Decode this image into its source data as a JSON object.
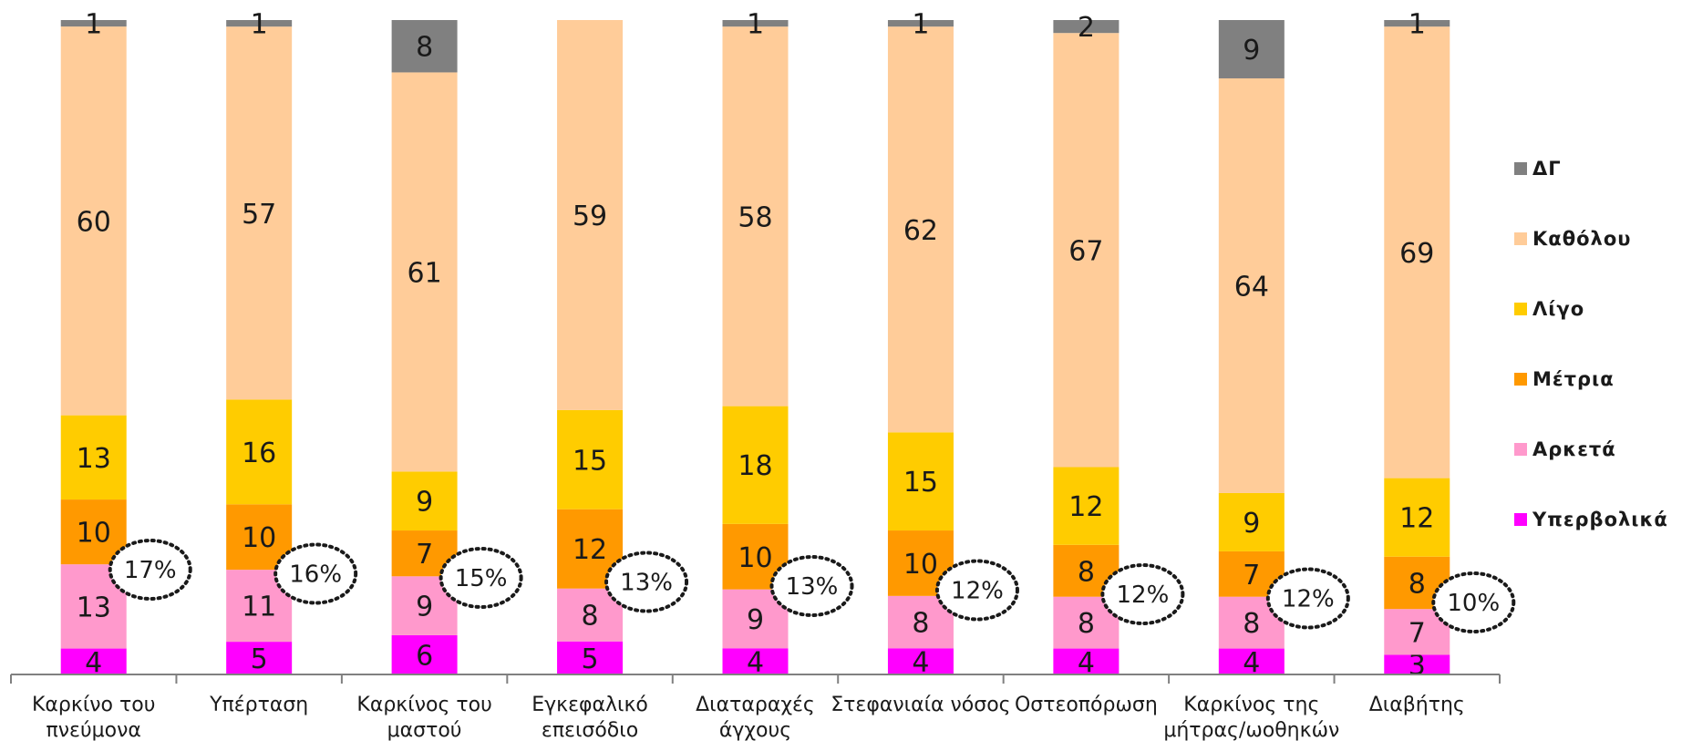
{
  "chart_data": {
    "type": "bar",
    "stacked": true,
    "percent_stacked": true,
    "categories": [
      [
        "Καρκίνο του",
        "πνεύμονα"
      ],
      [
        "Υπέρταση"
      ],
      [
        "Καρκίνος του",
        "μαστού"
      ],
      [
        "Εγκεφαλικό",
        "επεισόδιο"
      ],
      [
        "Διαταραχές",
        "άγχους"
      ],
      [
        "Στεφανιαία νόσος"
      ],
      [
        "Οστεοπόρωση"
      ],
      [
        "Καρκίνος της",
        "μήτρας/ωοθηκών"
      ],
      [
        "Διαβήτης"
      ]
    ],
    "series": [
      {
        "name": "Υπερβολικά",
        "color": "#FF00FF",
        "values": [
          4,
          5,
          6,
          5,
          4,
          4,
          4,
          4,
          3
        ]
      },
      {
        "name": "Αρκετά",
        "color": "#FF99CC",
        "values": [
          13,
          11,
          9,
          8,
          9,
          8,
          8,
          8,
          7
        ]
      },
      {
        "name": "Μέτρια",
        "color": "#FF9900",
        "values": [
          10,
          10,
          7,
          12,
          10,
          10,
          8,
          7,
          8
        ]
      },
      {
        "name": "Λίγο",
        "color": "#FFCC00",
        "values": [
          13,
          16,
          9,
          15,
          18,
          15,
          12,
          9,
          12
        ]
      },
      {
        "name": "Καθόλου",
        "color": "#FFCC99",
        "values": [
          60,
          57,
          61,
          59,
          58,
          62,
          67,
          64,
          69
        ]
      },
      {
        "name": "ΔΓ",
        "color": "#808080",
        "values": [
          1,
          1,
          8,
          0,
          1,
          1,
          2,
          9,
          1
        ]
      }
    ],
    "segment_labels_shown": {
      "ΔΓ": [
        true,
        true,
        true,
        false,
        true,
        true,
        true,
        true,
        true
      ]
    },
    "callouts": [
      "17%",
      "16%",
      "15%",
      "13%",
      "13%",
      "12%",
      "12%",
      "12%",
      "10%"
    ],
    "legend": {
      "placement": "right",
      "order": [
        "ΔΓ",
        "Καθόλου",
        "Λίγο",
        "Μέτρια",
        "Αρκετά",
        "Υπερβολικά"
      ]
    },
    "ylim": [
      0,
      100
    ],
    "grid": false,
    "title": "",
    "xlabel": "",
    "ylabel": ""
  }
}
